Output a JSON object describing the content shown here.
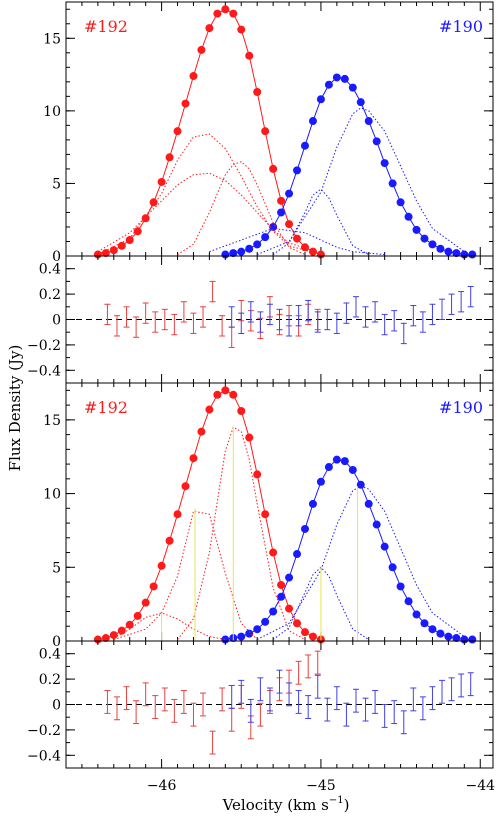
{
  "figure": {
    "ylabel": "Flux Density (Jy)",
    "xlabel": "Velocity (km s",
    "xlabel_sup": "−1",
    "xlabel_end": ")",
    "x_ticks": [
      "−46",
      "−45",
      "−44"
    ]
  },
  "chart_data": [
    {
      "type": "line",
      "panel": "top-main",
      "annotations": [
        {
          "text": "#192",
          "color": "#ff1a1a",
          "position": "top-left"
        },
        {
          "text": "#190",
          "color": "#1a1aff",
          "position": "top-right"
        }
      ],
      "xlim": [
        -46.6,
        -43.92
      ],
      "ylim": [
        0,
        17.5
      ],
      "y_ticks": [
        "0",
        "5",
        "10",
        "15"
      ],
      "series": [
        {
          "color": "#ff1a1a",
          "style": "markers-line",
          "x": [
            -46.4,
            -46.35,
            -46.3,
            -46.25,
            -46.2,
            -46.15,
            -46.1,
            -46.05,
            -46.0,
            -45.95,
            -45.9,
            -45.85,
            -45.8,
            -45.75,
            -45.7,
            -45.65,
            -45.6,
            -45.55,
            -45.5,
            -45.45,
            -45.4,
            -45.35,
            -45.3,
            -45.25,
            -45.2,
            -45.15,
            -45.1,
            -45.05,
            -45.0
          ],
          "y": [
            0.1,
            0.2,
            0.4,
            0.7,
            1.1,
            1.7,
            2.6,
            3.7,
            5.1,
            6.8,
            8.6,
            10.5,
            12.4,
            14.2,
            15.7,
            16.7,
            17.0,
            16.7,
            15.6,
            13.8,
            11.3,
            8.6,
            6.0,
            3.8,
            2.2,
            1.2,
            0.6,
            0.3,
            0.1
          ]
        },
        {
          "color": "#1a1aff",
          "style": "markers-line",
          "x": [
            -45.6,
            -45.55,
            -45.5,
            -45.45,
            -45.4,
            -45.35,
            -45.3,
            -45.25,
            -45.2,
            -45.15,
            -45.1,
            -45.05,
            -45.0,
            -44.95,
            -44.9,
            -44.85,
            -44.8,
            -44.75,
            -44.7,
            -44.65,
            -44.6,
            -44.55,
            -44.5,
            -44.45,
            -44.4,
            -44.35,
            -44.3,
            -44.25,
            -44.2,
            -44.15,
            -44.1,
            -44.05
          ],
          "y": [
            0.1,
            0.2,
            0.3,
            0.5,
            0.8,
            1.3,
            2.0,
            3.0,
            4.3,
            5.9,
            7.6,
            9.3,
            10.8,
            11.8,
            12.3,
            12.2,
            11.6,
            10.6,
            9.3,
            7.9,
            6.4,
            5.0,
            3.7,
            2.7,
            1.8,
            1.2,
            0.8,
            0.5,
            0.3,
            0.2,
            0.1,
            0.1
          ]
        },
        {
          "color": "#ff1a1a",
          "style": "dotted",
          "x": [
            -46.4,
            -46.2,
            -46.0,
            -45.9,
            -45.8,
            -45.7,
            -45.6,
            -45.5,
            -45.4,
            -45.3,
            -45.2,
            -45.0
          ],
          "y": [
            0.1,
            1.2,
            4.3,
            6.6,
            8.2,
            8.4,
            7.4,
            5.5,
            3.4,
            1.7,
            0.7,
            0.1
          ]
        },
        {
          "color": "#ff1a1a",
          "style": "dotted",
          "x": [
            -46.4,
            -46.2,
            -46.0,
            -45.9,
            -45.8,
            -45.7,
            -45.6,
            -45.5,
            -45.4,
            -45.3,
            -45.2,
            -45.0
          ],
          "y": [
            0.3,
            1.6,
            3.8,
            4.9,
            5.6,
            5.7,
            5.2,
            4.2,
            3.0,
            1.8,
            0.9,
            0.2
          ]
        },
        {
          "color": "#ff1a1a",
          "style": "dotted",
          "x": [
            -45.9,
            -45.8,
            -45.7,
            -45.6,
            -45.55,
            -45.5,
            -45.45,
            -45.4,
            -45.3,
            -45.2,
            -45.1
          ],
          "y": [
            0.1,
            0.8,
            3.0,
            5.6,
            6.3,
            6.5,
            6.0,
            4.9,
            2.3,
            0.6,
            0.1
          ]
        },
        {
          "color": "#1a1aff",
          "style": "dotted",
          "x": [
            -45.3,
            -45.2,
            -45.1,
            -45.05,
            -45.0,
            -44.95,
            -44.9,
            -44.8,
            -44.7
          ],
          "y": [
            0.1,
            0.9,
            3.0,
            4.2,
            4.6,
            4.0,
            2.8,
            0.7,
            0.1
          ]
        },
        {
          "color": "#1a1aff",
          "style": "dotted",
          "x": [
            -45.4,
            -45.2,
            -45.0,
            -44.9,
            -44.8,
            -44.75,
            -44.7,
            -44.6,
            -44.5,
            -44.4,
            -44.3,
            -44.1
          ],
          "y": [
            0.1,
            1.0,
            4.4,
            7.5,
            9.8,
            10.2,
            10.0,
            8.6,
            6.2,
            3.8,
            1.9,
            0.3
          ]
        },
        {
          "color": "#1a1aff",
          "style": "dotted",
          "x": [
            -45.7,
            -45.5,
            -45.3,
            -45.1,
            -45.0,
            -44.9,
            -44.8,
            -44.6
          ],
          "y": [
            0.3,
            1.1,
            1.9,
            1.6,
            1.1,
            0.6,
            0.3,
            0.1
          ]
        }
      ]
    },
    {
      "type": "scatter",
      "panel": "top-residual",
      "xlim": [
        -46.6,
        -43.92
      ],
      "ylim": [
        -0.5,
        0.5
      ],
      "y_ticks": [
        "−0.4",
        "−0.2",
        "0",
        "0.2",
        "0.4"
      ],
      "zero_line": true,
      "series": [
        {
          "color": "#e84040",
          "errorbar": 0.08,
          "x": [
            -46.34,
            -46.28,
            -46.22,
            -46.16,
            -46.1,
            -46.04,
            -45.98,
            -45.92,
            -45.86,
            -45.8,
            -45.74,
            -45.68,
            -45.62,
            -45.56,
            -45.5,
            -45.44,
            -45.38,
            -45.32,
            -45.26,
            -45.2,
            -45.14,
            -45.08,
            -45.02
          ],
          "y": [
            0.04,
            -0.05,
            0.02,
            -0.06,
            0.05,
            -0.02,
            0.0,
            -0.04,
            0.06,
            -0.03,
            0.02,
            0.22,
            -0.05,
            -0.14,
            0.07,
            -0.01,
            -0.07,
            0.1,
            -0.04,
            0.03,
            -0.05,
            0.04,
            0.0
          ]
        },
        {
          "color": "#4040e8",
          "errorbar": 0.08,
          "x": [
            -45.56,
            -45.5,
            -45.44,
            -45.38,
            -45.32,
            -45.26,
            -45.2,
            -45.14,
            -45.08,
            -45.02,
            -44.96,
            -44.9,
            -44.84,
            -44.78,
            -44.72,
            -44.66,
            -44.6,
            -44.54,
            -44.48,
            -44.42,
            -44.36,
            -44.3,
            -44.24,
            -44.18,
            -44.12,
            -44.06
          ],
          "y": [
            0.02,
            -0.03,
            0.06,
            -0.02,
            0.04,
            0.0,
            -0.05,
            0.03,
            0.07,
            -0.02,
            0.0,
            -0.03,
            0.05,
            0.1,
            0.02,
            0.06,
            -0.04,
            -0.01,
            -0.11,
            0.03,
            -0.02,
            0.04,
            0.08,
            0.12,
            0.14,
            0.18
          ]
        }
      ]
    },
    {
      "type": "line",
      "panel": "bottom-main",
      "annotations": [
        {
          "text": "#192",
          "color": "#ff1a1a",
          "position": "top-left"
        },
        {
          "text": "#190",
          "color": "#1a1aff",
          "position": "top-right"
        }
      ],
      "xlim": [
        -46.6,
        -43.92
      ],
      "ylim": [
        0,
        17.5
      ],
      "y_ticks": [
        "0",
        "5",
        "10",
        "15"
      ],
      "series": [
        {
          "color": "#ff1a1a",
          "style": "markers-line",
          "x": [
            -46.4,
            -46.35,
            -46.3,
            -46.25,
            -46.2,
            -46.15,
            -46.1,
            -46.05,
            -46.0,
            -45.95,
            -45.9,
            -45.85,
            -45.8,
            -45.75,
            -45.7,
            -45.65,
            -45.6,
            -45.55,
            -45.5,
            -45.45,
            -45.4,
            -45.35,
            -45.3,
            -45.25,
            -45.2,
            -45.15,
            -45.1,
            -45.05,
            -45.0
          ],
          "y": [
            0.1,
            0.2,
            0.4,
            0.7,
            1.1,
            1.7,
            2.6,
            3.7,
            5.1,
            6.8,
            8.6,
            10.5,
            12.4,
            14.2,
            15.7,
            16.7,
            17.0,
            16.7,
            15.6,
            13.8,
            11.3,
            8.6,
            6.0,
            3.8,
            2.2,
            1.2,
            0.6,
            0.3,
            0.1
          ]
        },
        {
          "color": "#1a1aff",
          "style": "markers-line",
          "x": [
            -45.6,
            -45.55,
            -45.5,
            -45.45,
            -45.4,
            -45.35,
            -45.3,
            -45.25,
            -45.2,
            -45.15,
            -45.1,
            -45.05,
            -45.0,
            -44.95,
            -44.9,
            -44.85,
            -44.8,
            -44.75,
            -44.7,
            -44.65,
            -44.6,
            -44.55,
            -44.5,
            -44.45,
            -44.4,
            -44.35,
            -44.3,
            -44.25,
            -44.2,
            -44.15,
            -44.1,
            -44.05
          ],
          "y": [
            0.1,
            0.2,
            0.3,
            0.5,
            0.8,
            1.3,
            2.0,
            3.0,
            4.3,
            5.9,
            7.6,
            9.3,
            10.8,
            11.8,
            12.3,
            12.2,
            11.6,
            10.6,
            9.3,
            7.9,
            6.4,
            5.0,
            3.7,
            2.7,
            1.8,
            1.2,
            0.8,
            0.5,
            0.3,
            0.2,
            0.1,
            0.1
          ]
        },
        {
          "color": "#ff1a1a",
          "style": "dotted",
          "x": [
            -46.3,
            -46.1,
            -46.0,
            -45.9,
            -45.8,
            -45.7,
            -45.6,
            -45.5,
            -45.4
          ],
          "y": [
            0.1,
            0.8,
            1.9,
            4.4,
            8.8,
            8.6,
            4.6,
            1.2,
            0.1
          ]
        },
        {
          "color": "#ff1a1a",
          "style": "dotted",
          "x": [
            -46.3,
            -46.2,
            -46.1,
            -46.0,
            -45.9,
            -45.8,
            -45.7,
            -45.6
          ],
          "y": [
            0.2,
            0.8,
            1.6,
            1.9,
            1.5,
            0.8,
            0.3,
            0.1
          ]
        },
        {
          "color": "#ff1a1a",
          "style": "dotted",
          "x": [
            -45.9,
            -45.8,
            -45.7,
            -45.65,
            -45.6,
            -45.55,
            -45.5,
            -45.45,
            -45.4,
            -45.3,
            -45.2,
            -45.1
          ],
          "y": [
            0.1,
            1.5,
            6.0,
            9.5,
            12.9,
            14.5,
            14.2,
            12.3,
            9.3,
            3.6,
            0.7,
            0.1
          ]
        },
        {
          "color": "#1a1aff",
          "style": "dotted",
          "x": [
            -45.3,
            -45.2,
            -45.1,
            -45.05,
            -45.0,
            -44.95,
            -44.9,
            -44.8,
            -44.7
          ],
          "y": [
            0.1,
            0.9,
            3.3,
            4.5,
            5.0,
            4.4,
            3.1,
            0.8,
            0.1
          ]
        },
        {
          "color": "#1a1aff",
          "style": "dotted",
          "x": [
            -45.4,
            -45.2,
            -45.0,
            -44.9,
            -44.8,
            -44.75,
            -44.7,
            -44.6,
            -44.5,
            -44.4,
            -44.3,
            -44.1
          ],
          "y": [
            0.1,
            1.2,
            4.8,
            7.9,
            10.2,
            10.5,
            10.3,
            8.8,
            6.3,
            3.8,
            1.9,
            0.3
          ]
        }
      ],
      "component_markers": {
        "color": "#e8e84a",
        "x": [
          -46.0,
          -45.79,
          -45.55,
          -45.0,
          -44.77
        ],
        "y": [
          1.9,
          9.0,
          14.6,
          5.0,
          10.5
        ]
      }
    },
    {
      "type": "scatter",
      "panel": "bottom-residual",
      "xlim": [
        -46.6,
        -43.92
      ],
      "ylim": [
        -0.5,
        0.5
      ],
      "y_ticks": [
        "−0.4",
        "−0.2",
        "0",
        "0.2",
        "0.4"
      ],
      "zero_line": true,
      "series": [
        {
          "color": "#e84040",
          "errorbar": 0.09,
          "x": [
            -46.34,
            -46.28,
            -46.22,
            -46.16,
            -46.1,
            -46.04,
            -45.98,
            -45.92,
            -45.86,
            -45.8,
            -45.74,
            -45.68,
            -45.62,
            -45.56,
            -45.5,
            -45.44,
            -45.38,
            -45.32,
            -45.26,
            -45.2,
            -45.14,
            -45.08,
            -45.02
          ],
          "y": [
            0.02,
            -0.03,
            0.05,
            -0.06,
            0.08,
            -0.02,
            0.04,
            -0.05,
            0.02,
            -0.08,
            0.0,
            -0.3,
            0.04,
            -0.12,
            0.06,
            -0.18,
            -0.08,
            0.02,
            0.12,
            0.18,
            0.25,
            0.3,
            0.33
          ]
        },
        {
          "color": "#4040e8",
          "errorbar": 0.09,
          "x": [
            -45.56,
            -45.5,
            -45.44,
            -45.38,
            -45.32,
            -45.26,
            -45.2,
            -45.14,
            -45.08,
            -45.02,
            -44.96,
            -44.9,
            -44.84,
            -44.78,
            -44.72,
            -44.66,
            -44.6,
            -44.54,
            -44.48,
            -44.42,
            -44.36,
            -44.3,
            -44.24,
            -44.18,
            -44.12,
            -44.06
          ],
          "y": [
            0.06,
            0.1,
            -0.05,
            0.12,
            0.04,
            0.18,
            0.08,
            0.02,
            -0.02,
            0.14,
            -0.04,
            0.05,
            -0.08,
            0.03,
            -0.04,
            0.02,
            -0.09,
            -0.06,
            -0.14,
            0.04,
            -0.03,
            0.05,
            0.1,
            0.12,
            0.15,
            0.16
          ]
        }
      ]
    }
  ]
}
